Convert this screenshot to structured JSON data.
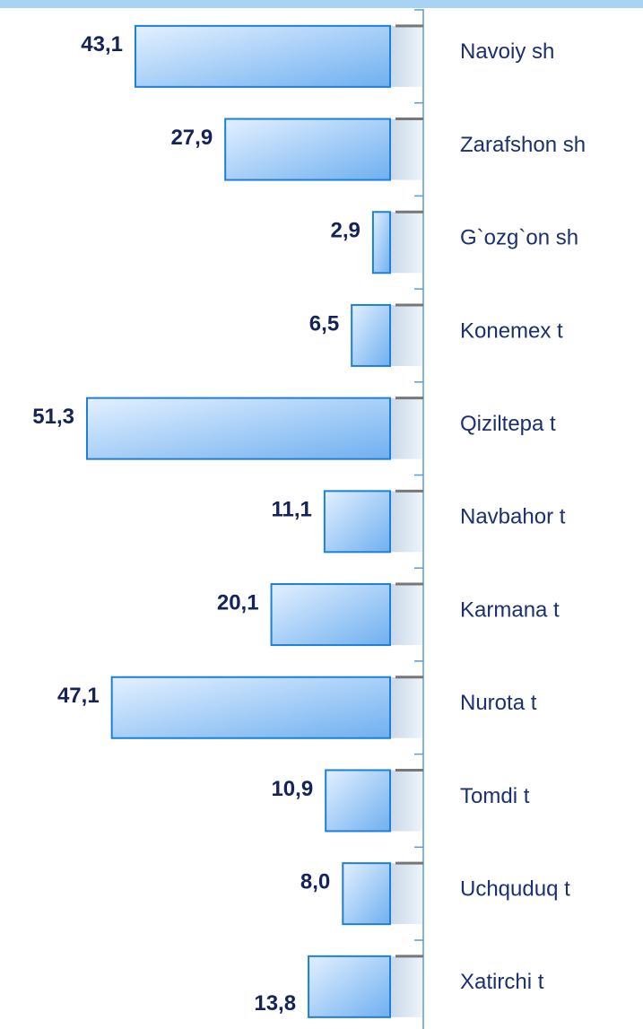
{
  "chart_data": {
    "type": "bar",
    "orientation": "horizontal",
    "color": "#6fb0f0",
    "categories": [
      "Navoiy sh",
      "Zarafshon sh",
      "G`ozg`on sh",
      "Konemex t",
      "Qiziltepa t",
      "Navbahor t",
      "Karmana t",
      "Nurota t",
      "Tomdi t",
      "Uchquduq t",
      "Xatirchi t"
    ],
    "values": [
      43.1,
      27.9,
      2.9,
      6.5,
      51.3,
      11.1,
      20.1,
      47.1,
      10.9,
      8.0,
      13.8
    ],
    "value_labels": [
      "43,1",
      "27,9",
      "2,9",
      "6,5",
      "51,3",
      "11,1",
      "20,1",
      "47,1",
      "10,9",
      "8,0",
      "13,8"
    ]
  }
}
